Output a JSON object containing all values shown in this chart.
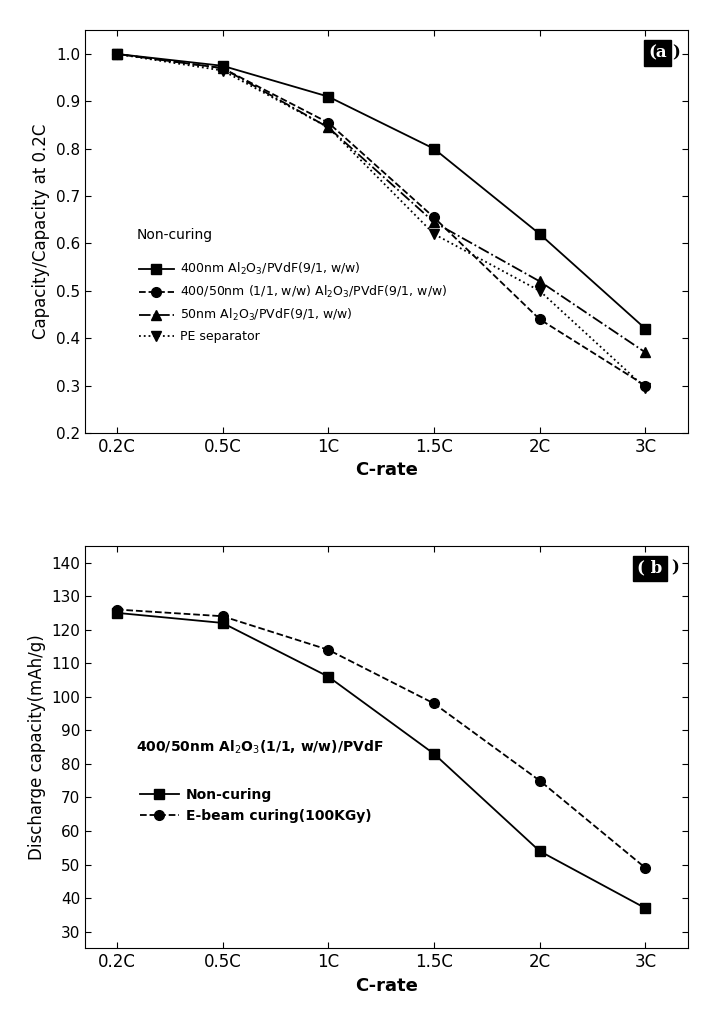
{
  "x_labels": [
    "0.2C",
    "0.5C",
    "1C",
    "1.5C",
    "2C",
    "3C"
  ],
  "x_vals": [
    0,
    1,
    2,
    3,
    4,
    5
  ],
  "panel_a": {
    "title": "(a",
    "ylabel": "Capacity/Capacity at 0.2C",
    "xlabel": "C-rate",
    "ylim": [
      0.2,
      1.05
    ],
    "yticks": [
      0.2,
      0.3,
      0.4,
      0.5,
      0.6,
      0.7,
      0.8,
      0.9,
      1.0
    ],
    "legend_header": "Non-curing",
    "series": [
      {
        "label": "400nm Al$_2$O$_3$/PVdF(9/1, w/w)",
        "y": [
          1.0,
          0.975,
          0.91,
          0.8,
          0.62,
          0.42
        ],
        "linestyle": "-",
        "marker": "s",
        "color": "black"
      },
      {
        "label": "400/50nm (1/1, w/w) Al$_2$O$_3$/PVdF(9/1, w/w)",
        "y": [
          1.0,
          0.97,
          0.855,
          0.655,
          0.44,
          0.3
        ],
        "linestyle": "--",
        "marker": "o",
        "color": "black"
      },
      {
        "label": "50nm Al$_2$O$_3$/PVdF(9/1, w/w)",
        "y": [
          1.0,
          0.97,
          0.845,
          0.645,
          0.52,
          0.37
        ],
        "linestyle": "-.",
        "marker": "^",
        "color": "black"
      },
      {
        "label": "PE separator",
        "y": [
          1.0,
          0.965,
          0.845,
          0.62,
          0.5,
          0.295
        ],
        "linestyle": ":",
        "marker": "v",
        "color": "black"
      }
    ]
  },
  "panel_b": {
    "title": "( b",
    "ylabel": "Discharge capacity(mAh/g)",
    "xlabel": "C-rate",
    "ylim": [
      25,
      145
    ],
    "yticks": [
      30,
      40,
      50,
      60,
      70,
      80,
      90,
      100,
      110,
      120,
      130,
      140
    ],
    "annotation": "400/50nm Al$_2$O$_3$(1/1, w/w)/PVdF",
    "series": [
      {
        "label": "Non-curing",
        "y": [
          125,
          122,
          106,
          83,
          54,
          37
        ],
        "linestyle": "-",
        "marker": "s",
        "color": "black"
      },
      {
        "label": "E-beam curing(100KGy)",
        "y": [
          126,
          124,
          114,
          98,
          75,
          49
        ],
        "linestyle": "--",
        "marker": "o",
        "color": "black"
      }
    ]
  }
}
